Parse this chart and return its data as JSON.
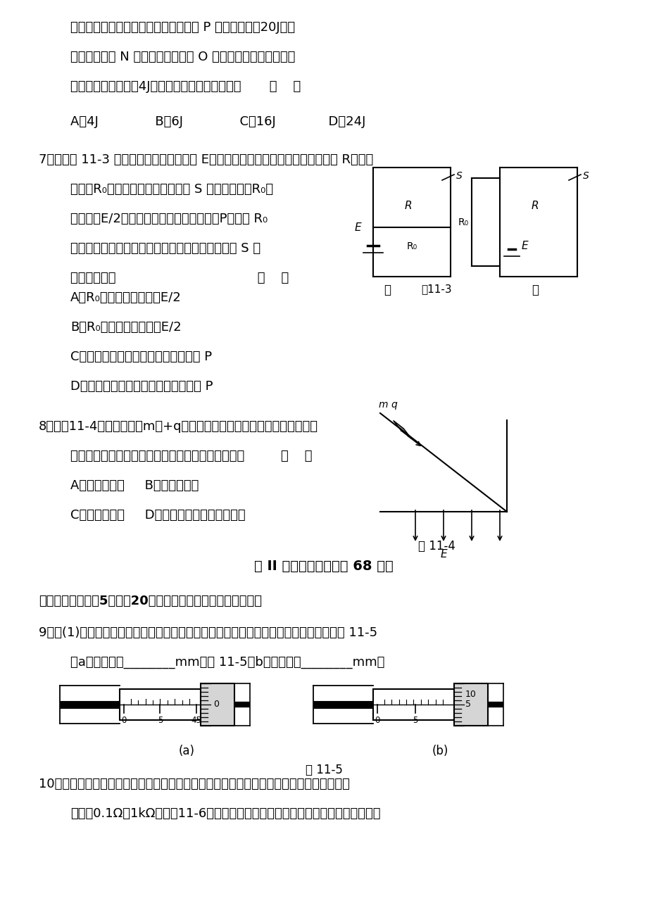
{
  "background_color": "#ffffff",
  "page_width": 9.2,
  "page_height": 13.0,
  "texts": {
    "line1": "间的电势差相等，一个正电荷在等势面 P 处时的动能为20J，当",
    "line2": "运动到等势面 N 时动能为零。现取 O 面为零电势参考平面，则",
    "line3": "当此电荷的电势能为4J，它的动能为（不计重力）       （    ）",
    "line4": "A．4J              B．6J              C．16J             D．24J",
    "q7": "7．如图甲 11-3 所示电路，电源电动势为 E，内阻不计，滑动变阻器的最大电阻为 R，负载",
    "q7a": "电阻为R₀。当滑动变阻器的滑动端 S 在某位置时，R₀两",
    "q7b": "端电压为E/2，滑动变阻器上消耗的功率为P。若将 R₀",
    "q7c": "与电源位置互换，接成图乙所示电路时，滑动触头 S 的",
    "q7d": "位置不变，则                                   （    ）",
    "q7A": "A．R₀两端的电压将小于E/2",
    "q7B": "B．R₀两端的电压将等于E/2",
    "q7C": "C．滑动变阻器上消耗的功率一定小于 P",
    "q7D": "D．滑动变阻器上消耗的功率可能大于 P",
    "q8": "8．如图11-4所示，质量为m带+q电量的滑块，沿绝缘斜面匀速下滑，当滑",
    "q8a": "块滑至竖直向下的匀强电场区时，滑块运动的状态为         （    ）",
    "q8A": "A．续匀速下滑     B．将加速下滑",
    "q8B": "C．将减速下滑     D．以上三种情况都可能发生",
    "fig114": "图 11-4",
    "sec2": "第 II 卷（非选择题，共 68 分）",
    "fill": "二、填空题（每题5分，共20分，请把答案填写在题中横线上）",
    "q9": "9．（(1)用螺旋测微器测量一矩形小零件的长和宽时，螺旋测微器上的示数如图所示。图 11-5",
    "q9a": "（a）的读数是________mm，图 11-5（b）的读数是________mm。",
    "fig115": "图 11-5",
    "q10": "10．在用电流表和电压表测干电池的电动势和内电阻的实验中，所用电流表和电压表的内阻",
    "q10a": "分别为0.1Ω和1kΩ，如图11-6（甲）和（乙）分别为实验原理图及所需的器件图。"
  }
}
